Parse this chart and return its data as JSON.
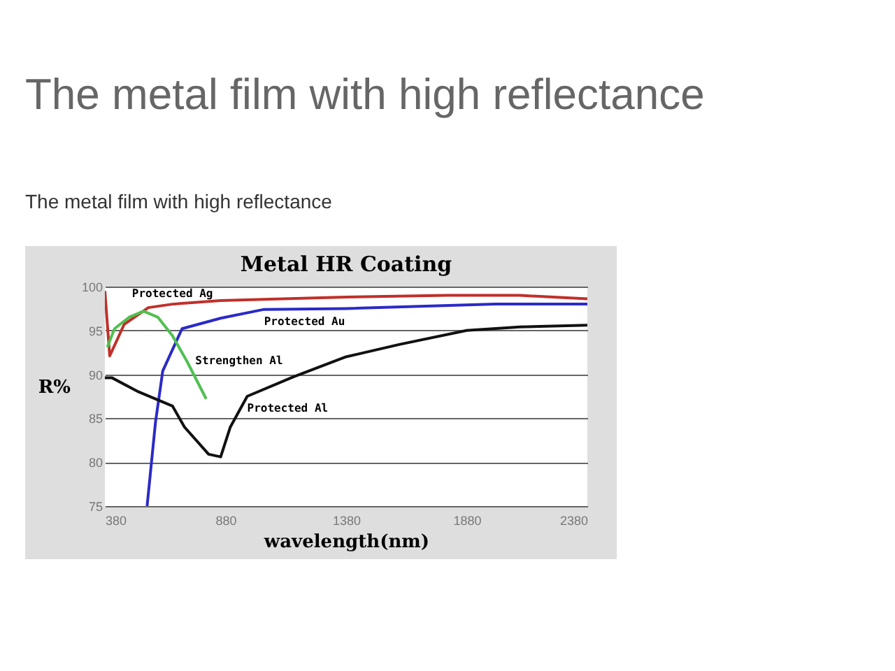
{
  "chart_data": {
    "type": "line",
    "title": "The metal film with high reflectance",
    "subtitle": "The metal film with high reflectance",
    "xlabel": "wavelength(nm)",
    "ylabel": "R%",
    "xlim": [
      380,
      2380
    ],
    "xticks": [
      380,
      880,
      {
        "value": 1380,
        "label": "1380"
      },
      {
        "value": 1880,
        "label": "1880"
      },
      {
        "value": 2380,
        "label": "2380"
      }
    ],
    "ylim": [
      75,
      100
    ],
    "yticks": [
      75,
      80,
      85,
      90,
      95,
      100
    ],
    "grid": "y",
    "legend": false,
    "marker": "none",
    "line_style": "solid",
    "series": [
      {
        "name": "Protected Ag",
        "color": "#c0302a",
        "x": [
          380,
          400,
          460,
          560,
          660,
          860,
          1380,
          1800,
          2100,
          2380
        ],
        "values": [
          99.5,
          92.1,
          95.7,
          97.6,
          98,
          98.4,
          98.8,
          99,
          99,
          98.6
        ]
      },
      {
        "name": "Protected Au",
        "color": "#2a2ac8",
        "x": [
          555,
          590,
          620,
          700,
          860,
          1040,
          1380,
          2000,
          2380
        ],
        "values": [
          75,
          84.6,
          90.4,
          95.2,
          96.4,
          97.4,
          97.5,
          98,
          98
        ]
      },
      {
        "name": "Strengthen Al",
        "color": "#50c050",
        "x": [
          390,
          420,
          480,
          540,
          600,
          660,
          720,
          800
        ],
        "values": [
          93.1,
          95.2,
          96.5,
          97.2,
          96.5,
          94.4,
          91.5,
          87.2
        ]
      },
      {
        "name": "Protected Al",
        "color": "#111111",
        "x": [
          380,
          410,
          520,
          660,
          710,
          810,
          860,
          900,
          970,
          1160,
          1380,
          1600,
          1880,
          2100,
          2380
        ],
        "values": [
          89.6,
          89.6,
          88,
          86.4,
          84,
          80.9,
          80.6,
          84,
          87.5,
          89.7,
          92,
          93.4,
          95,
          95.4,
          95.6
        ]
      }
    ],
    "annotations": [
      "Metal HR Coating"
    ]
  }
}
